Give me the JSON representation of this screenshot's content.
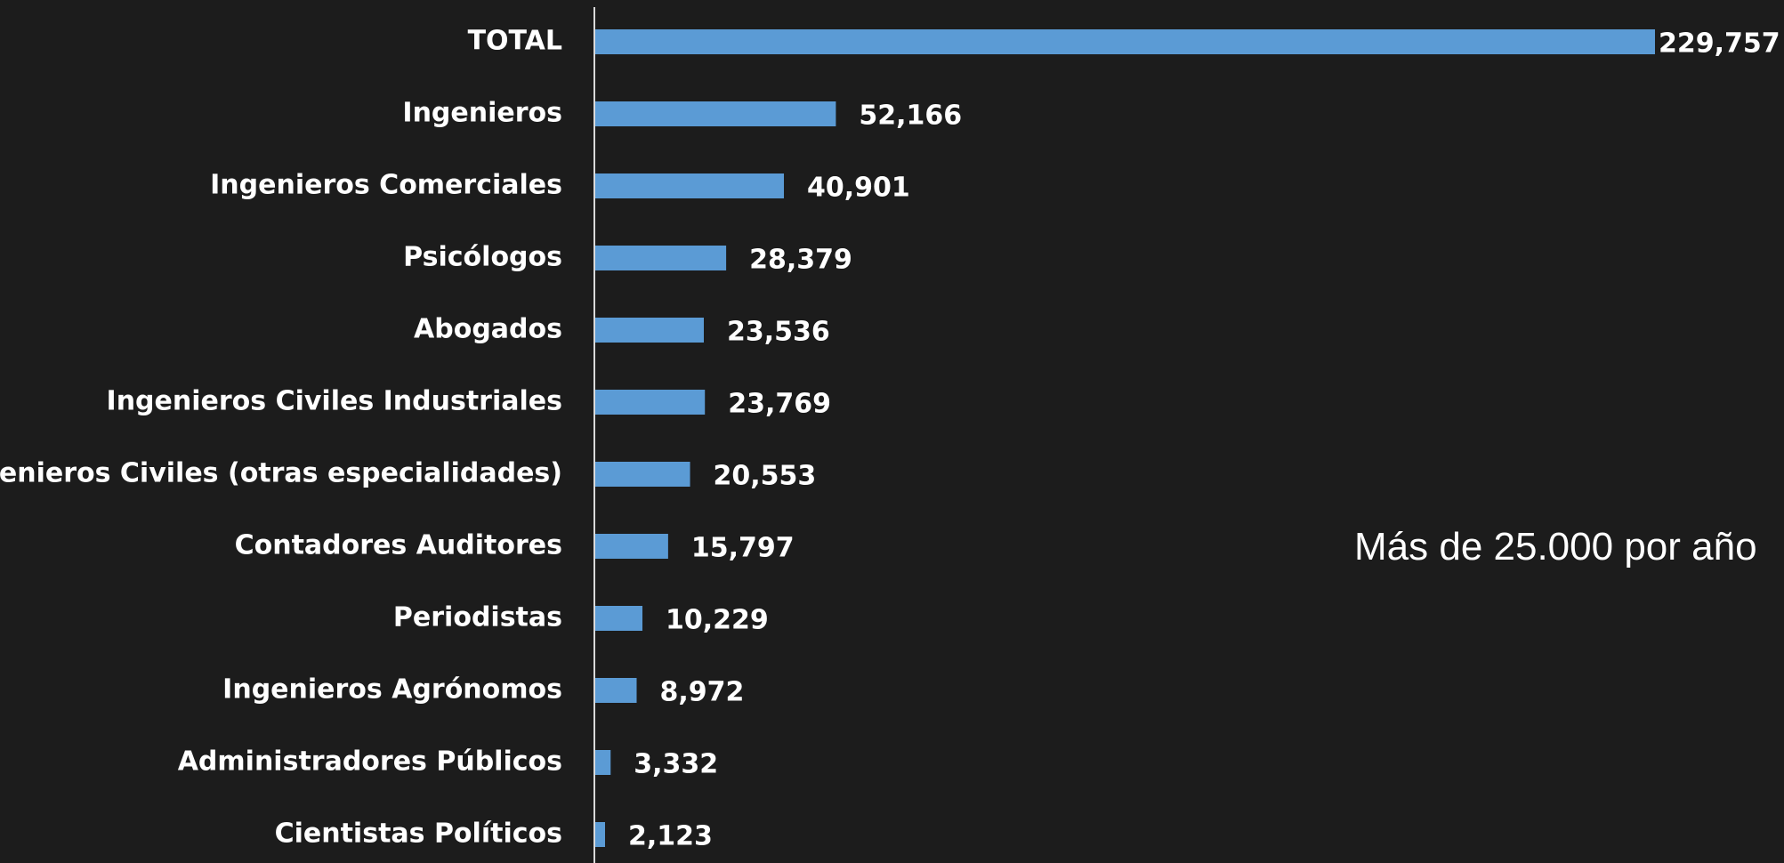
{
  "chart_data": {
    "type": "bar",
    "orientation": "horizontal",
    "categories": [
      "TOTAL",
      "Ingenieros",
      "Ingenieros Comerciales",
      "Psicólogos",
      "Abogados",
      "Ingenieros Civiles Industriales",
      "Ingenieros Civiles (otras especialidades)",
      "Contadores Auditores",
      "Periodistas",
      "Ingenieros Agrónomos",
      "Administradores Públicos",
      "Cientistas Políticos"
    ],
    "values": [
      229757,
      52166,
      40901,
      28379,
      23536,
      23769,
      20553,
      15797,
      10229,
      8972,
      3332,
      2123
    ],
    "value_labels": [
      "229,757",
      "52,166",
      "40,901",
      "28,379",
      "23,536",
      "23,769",
      "20,553",
      "15,797",
      "10,229",
      "8,972",
      "3,332",
      "2,123"
    ],
    "xlim": [
      0,
      230000
    ],
    "grid": false,
    "bar_color": "#5b9bd5",
    "axis_color": "#d9d9d9",
    "annotation": "Más de 25.000 por año"
  }
}
